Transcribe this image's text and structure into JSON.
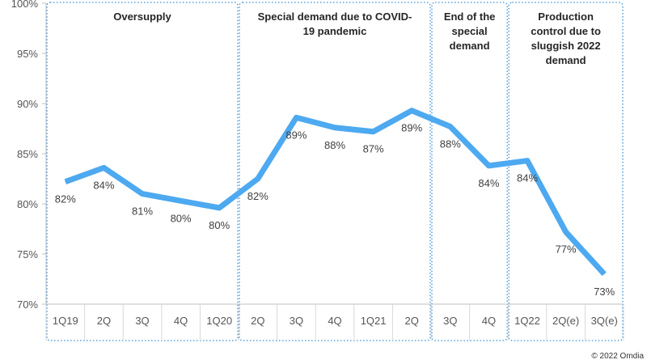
{
  "chart_data": {
    "type": "line",
    "x": [
      "1Q19",
      "2Q",
      "3Q",
      "4Q",
      "1Q20",
      "2Q",
      "3Q",
      "4Q",
      "1Q21",
      "2Q",
      "3Q",
      "4Q",
      "1Q22",
      "2Q(e)",
      "3Q(e)"
    ],
    "values": [
      82.2,
      83.6,
      81.0,
      80.3,
      79.6,
      82.5,
      88.6,
      87.6,
      87.2,
      89.3,
      87.7,
      83.8,
      84.3,
      77.2,
      73.0
    ],
    "data_labels": [
      "82%",
      "84%",
      "81%",
      "80%",
      "80%",
      "82%",
      "89%",
      "88%",
      "87%",
      "89%",
      "88%",
      "84%",
      "84%",
      "77%",
      "73%"
    ],
    "y_ticks": [
      "70%",
      "75%",
      "80%",
      "85%",
      "90%",
      "95%",
      "100%"
    ],
    "ylim": [
      70,
      100
    ],
    "line_color": "#4DA9F0",
    "grid": false,
    "legend": "none",
    "periods": [
      {
        "label": "Oversupply",
        "start": 0,
        "end": 4
      },
      {
        "label": "Special demand due to COVID-19 pandemic",
        "start": 5,
        "end": 9
      },
      {
        "label": "End of the special demand",
        "start": 10,
        "end": 11
      },
      {
        "label": "Production control due to sluggish 2022 demand",
        "start": 12,
        "end": 14
      }
    ]
  },
  "credit": "© 2022 Omdia"
}
